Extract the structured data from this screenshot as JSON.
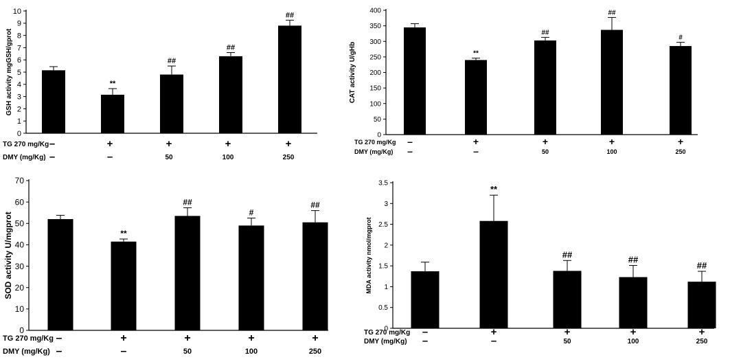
{
  "panels": [
    {
      "chart_data": {
        "type": "bar",
        "ylabel": "GSH activity  mgGSH/gprot",
        "ylim": [
          0,
          10
        ],
        "yticks": [
          0,
          1,
          2,
          3,
          4,
          5,
          6,
          7,
          8,
          9,
          10
        ],
        "values": [
          5.15,
          3.15,
          4.8,
          6.3,
          8.8
        ],
        "errors": [
          0.3,
          0.5,
          0.7,
          0.3,
          0.45
        ],
        "annotations": [
          "",
          "**",
          "##",
          "##",
          "##"
        ]
      },
      "rows": [
        {
          "label": "TG 270 mg/Kg",
          "values": [
            "–",
            "+",
            "+",
            "+",
            "+"
          ]
        },
        {
          "label": "DMY (mg/Kg)",
          "values": [
            "–",
            "–",
            "50",
            "100",
            "250"
          ]
        }
      ]
    },
    {
      "chart_data": {
        "type": "bar",
        "ylabel": "CAT activity  U/gHb",
        "ylim": [
          0,
          400
        ],
        "yticks": [
          0,
          50,
          100,
          150,
          200,
          250,
          300,
          350,
          400
        ],
        "values": [
          345,
          240,
          303,
          337,
          285
        ],
        "errors": [
          12,
          6,
          10,
          40,
          12
        ],
        "annotations": [
          "",
          "**",
          "##",
          "##",
          "#"
        ]
      },
      "rows": [
        {
          "label": "TG 270 mg/Kg",
          "values": [
            "–",
            "+",
            "+",
            "+",
            "+"
          ]
        },
        {
          "label": "DMY  (mg/Kg)",
          "values": [
            "–",
            "–",
            "50",
            "100",
            "250"
          ]
        }
      ]
    },
    {
      "chart_data": {
        "type": "bar",
        "ylabel": "SOD activity   U/mgprot",
        "ylim": [
          0,
          70
        ],
        "yticks": [
          0,
          10,
          20,
          30,
          40,
          50,
          60,
          70
        ],
        "values": [
          52,
          41.5,
          53.5,
          49,
          50.5
        ],
        "errors": [
          1.8,
          1.2,
          3.8,
          3.5,
          5.5
        ],
        "annotations": [
          "",
          "**",
          "##",
          "#",
          "##"
        ]
      },
      "rows": [
        {
          "label": "TG 270 mg/Kg",
          "values": [
            "–",
            "+",
            "+",
            "+",
            "+"
          ]
        },
        {
          "label": "DMY (mg/Kg)",
          "values": [
            "–",
            "–",
            "50",
            "100",
            "250"
          ]
        }
      ]
    },
    {
      "chart_data": {
        "type": "bar",
        "ylabel": "MDA activity nmol/mgprot",
        "ylim": [
          0,
          3.5
        ],
        "yticks": [
          "0",
          "0.5",
          "1",
          "1.5",
          "2",
          "2.5",
          "3",
          "3.5"
        ],
        "values": [
          1.37,
          2.58,
          1.38,
          1.23,
          1.12
        ],
        "errors": [
          0.22,
          0.62,
          0.25,
          0.28,
          0.25
        ],
        "annotations": [
          "",
          "**",
          "##",
          "##",
          "##"
        ]
      },
      "rows": [
        {
          "label": "TG 270 mg/Kg",
          "values": [
            "–",
            "+",
            "+",
            "+",
            "+"
          ]
        },
        {
          "label": "DMY  (mg/Kg)",
          "values": [
            "–",
            "–",
            "50",
            "100",
            "250"
          ]
        }
      ]
    }
  ]
}
